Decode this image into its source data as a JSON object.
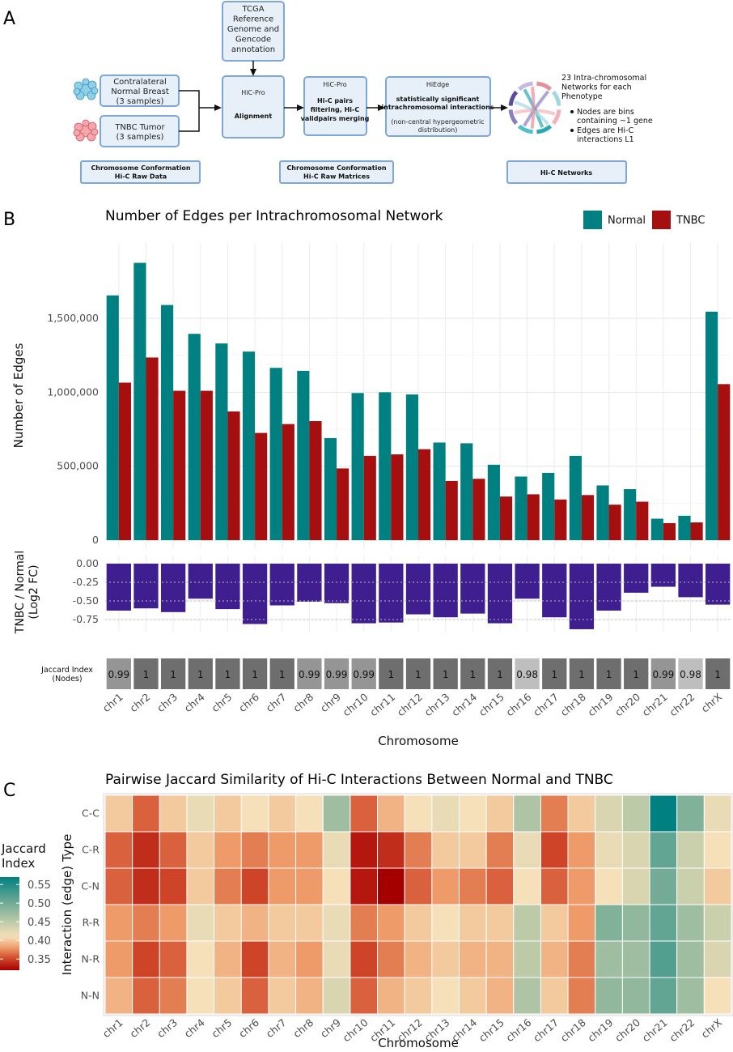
{
  "panel_labels": {
    "a": "A",
    "b": "B",
    "c": "C"
  },
  "workflow": {
    "tcga": [
      "TCGA",
      "Reference",
      "Genome and",
      "Gencode",
      "annotation"
    ],
    "normal": [
      "Contralateral",
      "Normal Breast",
      "(3 samples)"
    ],
    "tumor": [
      "TNBC Tumor",
      "(3 samples)"
    ],
    "hicpro1": {
      "title": "HiC-Pro",
      "sub": "Alignment"
    },
    "hicpro2": {
      "title": "HiC-Pro",
      "sub": [
        "Hi-C pairs",
        "filtering, Hi-C",
        "validpairs merging"
      ]
    },
    "hiedge": {
      "title": "HiEdge",
      "sub": [
        "statistically significant",
        "intrachromosomal interactions"
      ],
      "note": [
        "(non-central hypergeometric",
        "distribution)"
      ]
    },
    "networks_title": [
      "23 Intra-chromosomal",
      "Networks for each",
      "Phenotype"
    ],
    "bullets": [
      [
        "Nodes are bins",
        "containing ~1 gene"
      ],
      [
        "Edges are Hi-C",
        "interactions L1"
      ]
    ],
    "footer": {
      "raw": [
        "Chromosome Conformation",
        "Hi-C Raw Data"
      ],
      "matrices": [
        "Chromosome Conformation",
        "Hi-C Raw Matrices"
      ],
      "networks": "Hi-C Networks"
    }
  },
  "chart_data": [
    {
      "type": "bar",
      "title": "Number of Edges per Intrachromosomal Network",
      "xlabel": "Chromosome",
      "ylabel": "Number of Edges",
      "ylim": [
        0,
        1900000
      ],
      "yticks": [
        0,
        500000,
        1000000,
        1500000
      ],
      "ytick_labels": [
        "0",
        "500,000",
        "1,000,000",
        "1,500,000"
      ],
      "categories": [
        "chr1",
        "chr2",
        "chr3",
        "chr4",
        "chr5",
        "chr6",
        "chr7",
        "chr8",
        "chr9",
        "chr10",
        "chr11",
        "chr12",
        "chr13",
        "chr14",
        "chr15",
        "chr16",
        "chr17",
        "chr18",
        "chr19",
        "chr20",
        "chr21",
        "chr22",
        "chrX"
      ],
      "legend": [
        {
          "name": "Normal",
          "color": "#008080"
        },
        {
          "name": "TNBC",
          "color": "#a50f0f"
        }
      ],
      "series": [
        {
          "name": "Normal",
          "values": [
            1655000,
            1875000,
            1590000,
            1395000,
            1330000,
            1275000,
            1165000,
            1145000,
            690000,
            995000,
            1000000,
            985000,
            660000,
            655000,
            510000,
            430000,
            455000,
            570000,
            370000,
            345000,
            145000,
            165000,
            1545000
          ]
        },
        {
          "name": "TNBC",
          "values": [
            1065000,
            1235000,
            1010000,
            1010000,
            870000,
            725000,
            785000,
            805000,
            485000,
            570000,
            580000,
            615000,
            400000,
            415000,
            295000,
            310000,
            275000,
            305000,
            240000,
            260000,
            115000,
            120000,
            1055000
          ]
        }
      ]
    },
    {
      "type": "bar",
      "ylabel": [
        "TNBC / Normal",
        "(Log2 FC)"
      ],
      "ylim": [
        -0.88,
        0.0
      ],
      "yticks": [
        0,
        -0.25,
        -0.5,
        -0.75
      ],
      "ytick_labels": [
        "0.00",
        "-0.25",
        "-0.50",
        "-0.75"
      ],
      "color": "#3f1f8f",
      "values": [
        -0.63,
        -0.6,
        -0.65,
        -0.47,
        -0.61,
        -0.81,
        -0.56,
        -0.51,
        -0.53,
        -0.8,
        -0.79,
        -0.68,
        -0.72,
        -0.67,
        -0.8,
        -0.47,
        -0.72,
        -0.88,
        -0.63,
        -0.39,
        -0.31,
        -0.45,
        -0.55
      ]
    },
    {
      "type": "table",
      "row_label": [
        "Jaccard Index",
        "(Nodes)"
      ],
      "values": [
        "0.99",
        "1",
        "1",
        "1",
        "1",
        "1",
        "1",
        "0.99",
        "0.99",
        "0.99",
        "1",
        "1",
        "1",
        "1",
        "1",
        "0.98",
        "1",
        "1",
        "1",
        "1",
        "0.99",
        "0.98",
        "1"
      ],
      "colors": {
        "1": "#6e6e6e",
        "0.99": "#959595",
        "0.98": "#bebebe"
      }
    },
    {
      "type": "heatmap",
      "title": "Pairwise Jaccard Similarity of Hi-C Interactions Between Normal and TNBC",
      "xlabel": "Chromosome",
      "ylabel": "Interaction (edge) Type",
      "rows": [
        "C-C",
        "C-R",
        "C-N",
        "R-R",
        "N-R",
        "N-N"
      ],
      "legend_title": [
        "Jaccard",
        "Index"
      ],
      "legend_ticks": [
        0.55,
        0.5,
        0.45,
        0.4,
        0.35
      ],
      "legend_tick_labels": [
        "0.55",
        "0.50",
        "0.45",
        "0.40",
        "0.35"
      ],
      "range": [
        0.32,
        0.57
      ],
      "values": [
        [
          0.4,
          0.36,
          0.4,
          0.42,
          0.4,
          0.41,
          0.4,
          0.41,
          0.47,
          0.36,
          0.39,
          0.41,
          0.42,
          0.41,
          0.4,
          0.46,
          0.37,
          0.4,
          0.43,
          0.45,
          0.57,
          0.49,
          0.42
        ],
        [
          0.36,
          0.34,
          0.36,
          0.4,
          0.38,
          0.37,
          0.38,
          0.38,
          0.42,
          0.33,
          0.34,
          0.37,
          0.4,
          0.4,
          0.37,
          0.42,
          0.35,
          0.38,
          0.42,
          0.43,
          0.51,
          0.44,
          0.41
        ],
        [
          0.36,
          0.34,
          0.35,
          0.4,
          0.37,
          0.35,
          0.38,
          0.38,
          0.41,
          0.33,
          0.32,
          0.36,
          0.38,
          0.37,
          0.36,
          0.41,
          0.36,
          0.38,
          0.41,
          0.43,
          0.5,
          0.44,
          0.4
        ],
        [
          0.38,
          0.37,
          0.38,
          0.42,
          0.4,
          0.39,
          0.4,
          0.4,
          0.42,
          0.37,
          0.38,
          0.4,
          0.41,
          0.4,
          0.4,
          0.45,
          0.4,
          0.38,
          0.49,
          0.48,
          0.51,
          0.47,
          0.44
        ],
        [
          0.38,
          0.35,
          0.36,
          0.41,
          0.39,
          0.35,
          0.39,
          0.38,
          0.42,
          0.35,
          0.37,
          0.39,
          0.4,
          0.39,
          0.39,
          0.45,
          0.39,
          0.37,
          0.47,
          0.47,
          0.52,
          0.47,
          0.43
        ],
        [
          0.39,
          0.36,
          0.37,
          0.41,
          0.4,
          0.36,
          0.4,
          0.39,
          0.43,
          0.36,
          0.39,
          0.4,
          0.41,
          0.4,
          0.39,
          0.46,
          0.4,
          0.37,
          0.48,
          0.48,
          0.51,
          0.47,
          0.41
        ]
      ]
    }
  ]
}
